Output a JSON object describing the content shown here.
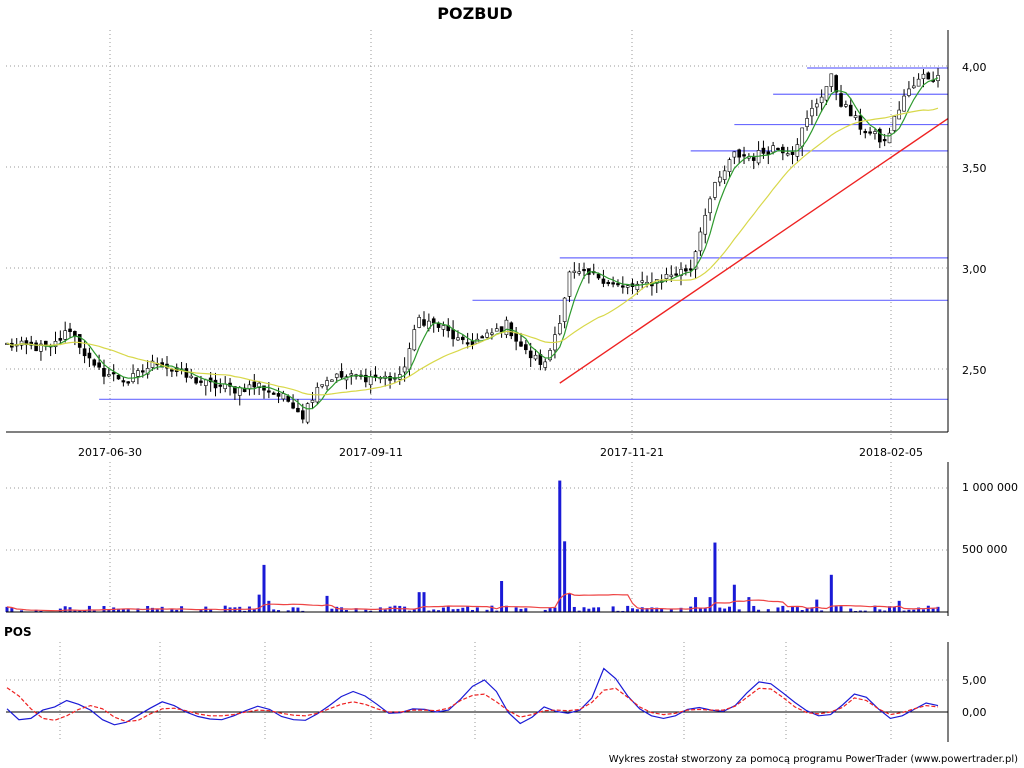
{
  "chart_data": [
    {
      "type": "candlestick",
      "title": "POZBUD",
      "x_tick_labels": [
        "2017-06-30",
        "2017-09-11",
        "2017-11-21",
        "2018-02-05"
      ],
      "y_tick_labels": [
        "2,50",
        "3,00",
        "3,50",
        "4,00"
      ],
      "ylim": [
        2.2,
        4.1
      ],
      "grid": true,
      "price_path": [
        {
          "d": "2017-05-26",
          "p": 2.62
        },
        {
          "d": "2017-06-08",
          "p": 2.6
        },
        {
          "d": "2017-06-14",
          "p": 2.7
        },
        {
          "d": "2017-06-21",
          "p": 2.5
        },
        {
          "d": "2017-06-30",
          "p": 2.44
        },
        {
          "d": "2017-07-10",
          "p": 2.54
        },
        {
          "d": "2017-07-18",
          "p": 2.46
        },
        {
          "d": "2017-07-25",
          "p": 2.42
        },
        {
          "d": "2017-08-01",
          "p": 2.4
        },
        {
          "d": "2017-08-08",
          "p": 2.42
        },
        {
          "d": "2017-08-17",
          "p": 2.33
        },
        {
          "d": "2017-08-21",
          "p": 2.27
        },
        {
          "d": "2017-08-24",
          "p": 2.42
        },
        {
          "d": "2017-08-29",
          "p": 2.46
        },
        {
          "d": "2017-09-11",
          "p": 2.46
        },
        {
          "d": "2017-09-18",
          "p": 2.45
        },
        {
          "d": "2017-09-22",
          "p": 2.75
        },
        {
          "d": "2017-09-29",
          "p": 2.7
        },
        {
          "d": "2017-10-05",
          "p": 2.62
        },
        {
          "d": "2017-10-12",
          "p": 2.66
        },
        {
          "d": "2017-10-18",
          "p": 2.72
        },
        {
          "d": "2017-10-24",
          "p": 2.58
        },
        {
          "d": "2017-10-30",
          "p": 2.52
        },
        {
          "d": "2017-11-02",
          "p": 2.75
        },
        {
          "d": "2017-11-06",
          "p": 2.97
        },
        {
          "d": "2017-11-14",
          "p": 2.96
        },
        {
          "d": "2017-11-21",
          "p": 2.9
        },
        {
          "d": "2017-11-28",
          "p": 2.92
        },
        {
          "d": "2017-12-04",
          "p": 2.96
        },
        {
          "d": "2017-12-11",
          "p": 3.0
        },
        {
          "d": "2017-12-14",
          "p": 3.28
        },
        {
          "d": "2017-12-18",
          "p": 3.4
        },
        {
          "d": "2017-12-22",
          "p": 3.56
        },
        {
          "d": "2017-12-28",
          "p": 3.55
        },
        {
          "d": "2018-01-03",
          "p": 3.6
        },
        {
          "d": "2018-01-09",
          "p": 3.58
        },
        {
          "d": "2018-01-15",
          "p": 3.78
        },
        {
          "d": "2018-01-19",
          "p": 3.94
        },
        {
          "d": "2018-01-23",
          "p": 3.82
        },
        {
          "d": "2018-01-29",
          "p": 3.7
        },
        {
          "d": "2018-02-05",
          "p": 3.62
        },
        {
          "d": "2018-02-09",
          "p": 3.85
        },
        {
          "d": "2018-02-15",
          "p": 3.95
        },
        {
          "d": "2018-02-20",
          "p": 3.94
        }
      ],
      "horizontal_lines": [
        {
          "y": 2.35,
          "from": "2017-06-22",
          "to": "2018-02-20",
          "color": "#6b6bff"
        },
        {
          "y": 2.84,
          "from": "2017-10-09",
          "to": "2018-02-20",
          "color": "#6b6bff"
        },
        {
          "y": 3.05,
          "from": "2017-11-02",
          "to": "2018-02-20",
          "color": "#6b6bff"
        },
        {
          "y": 3.58,
          "from": "2017-12-11",
          "to": "2018-02-20",
          "color": "#6b6bff"
        },
        {
          "y": 3.71,
          "from": "2017-12-22",
          "to": "2018-02-20",
          "color": "#6b6bff"
        },
        {
          "y": 3.86,
          "from": "2018-01-03",
          "to": "2018-02-20",
          "color": "#6b6bff"
        },
        {
          "y": 3.99,
          "from": "2018-01-12",
          "to": "2018-02-20",
          "color": "#6b6bff"
        }
      ],
      "trend_line": {
        "from": {
          "d": "2017-11-02",
          "y": 2.43
        },
        "to": {
          "d": "2018-02-20",
          "y": 3.74
        },
        "color": "#ee2222"
      },
      "moving_averages": [
        {
          "color": "#2e9a2e",
          "period": 5
        },
        {
          "color": "#d8d84a",
          "period": 20
        }
      ],
      "colors": {
        "up": "#ffffff",
        "down": "#000000",
        "grid": "#999999"
      }
    },
    {
      "type": "bar",
      "y_tick_labels": [
        "500 000",
        "1 000 000"
      ],
      "ylim": [
        0,
        1100000
      ],
      "spikes": [
        {
          "d": "2017-08-08",
          "v": 140000
        },
        {
          "d": "2017-08-09",
          "v": 380000
        },
        {
          "d": "2017-08-10",
          "v": 90000
        },
        {
          "d": "2017-08-28",
          "v": 130000
        },
        {
          "d": "2017-09-22",
          "v": 160000
        },
        {
          "d": "2017-09-25",
          "v": 160000
        },
        {
          "d": "2017-10-17",
          "v": 250000
        },
        {
          "d": "2017-11-02",
          "v": 1060000
        },
        {
          "d": "2017-11-03",
          "v": 570000
        },
        {
          "d": "2017-11-06",
          "v": 150000
        },
        {
          "d": "2017-12-12",
          "v": 120000
        },
        {
          "d": "2017-12-15",
          "v": 120000
        },
        {
          "d": "2017-12-18",
          "v": 560000
        },
        {
          "d": "2017-12-22",
          "v": 220000
        },
        {
          "d": "2017-12-27",
          "v": 120000
        },
        {
          "d": "2018-01-16",
          "v": 100000
        },
        {
          "d": "2018-01-19",
          "v": 300000
        },
        {
          "d": "2018-02-08",
          "v": 90000
        }
      ],
      "average_color": "#ee4444",
      "bar_color": "#1a1ad6"
    },
    {
      "type": "line",
      "title": "POS",
      "y_tick_labels": [
        "0,00",
        "5,00"
      ],
      "ylim": [
        -3.0,
        6.0
      ],
      "series": [
        {
          "color": "#1a1ad6",
          "values": [
            0.5,
            -1.2,
            -1.0,
            0.3,
            0.8,
            1.8,
            1.2,
            0.3,
            -1.2,
            -2.0,
            -1.6,
            -0.5,
            0.6,
            1.6,
            1.0,
            0.0,
            -0.7,
            -1.1,
            -1.2,
            -0.6,
            0.2,
            0.9,
            0.4,
            -0.7,
            -1.2,
            -1.3,
            -0.3,
            1.0,
            2.4,
            3.2,
            2.5,
            1.2,
            -0.2,
            -0.1,
            0.5,
            0.4,
            0.0,
            0.3,
            2.0,
            4.0,
            5.0,
            3.2,
            -0.1,
            -1.8,
            -0.8,
            0.8,
            0.1,
            -0.2,
            0.3,
            2.2,
            6.8,
            5.2,
            2.5,
            0.5,
            -0.6,
            -1.0,
            -0.6,
            0.4,
            0.7,
            0.3,
            0.1,
            1.0,
            3.0,
            4.7,
            4.4,
            3.0,
            1.5,
            0.2,
            -0.6,
            -0.4,
            1.1,
            2.8,
            2.3,
            0.5,
            -1.0,
            -0.6,
            0.4,
            1.4,
            1.0
          ]
        },
        {
          "color": "#ee2222",
          "dashed": true,
          "values": [
            3.8,
            2.5,
            0.5,
            -1.0,
            -1.3,
            -0.6,
            0.4,
            1.0,
            0.5,
            -0.8,
            -1.5,
            -1.3,
            -0.3,
            0.5,
            0.6,
            0.2,
            -0.3,
            -0.6,
            -0.6,
            -0.4,
            0.0,
            0.3,
            0.2,
            -0.2,
            -0.5,
            -0.6,
            -0.2,
            0.5,
            1.2,
            1.6,
            1.2,
            0.5,
            0.0,
            0.0,
            0.3,
            0.3,
            0.2,
            0.6,
            1.8,
            2.6,
            2.8,
            1.6,
            0.2,
            -0.8,
            -0.4,
            0.2,
            0.3,
            0.2,
            0.4,
            1.5,
            3.4,
            3.7,
            2.3,
            0.8,
            -0.1,
            -0.4,
            -0.2,
            0.3,
            0.4,
            0.3,
            0.3,
            0.9,
            2.3,
            3.7,
            3.6,
            2.3,
            0.8,
            -0.1,
            -0.3,
            0.0,
            0.7,
            2.2,
            1.8,
            0.5,
            -0.4,
            -0.1,
            0.5,
            1.0,
            0.8
          ]
        }
      ]
    }
  ],
  "footer": "Wykres został stworzony za pomocą programu PowerTrader (www.powertrader.pl)"
}
